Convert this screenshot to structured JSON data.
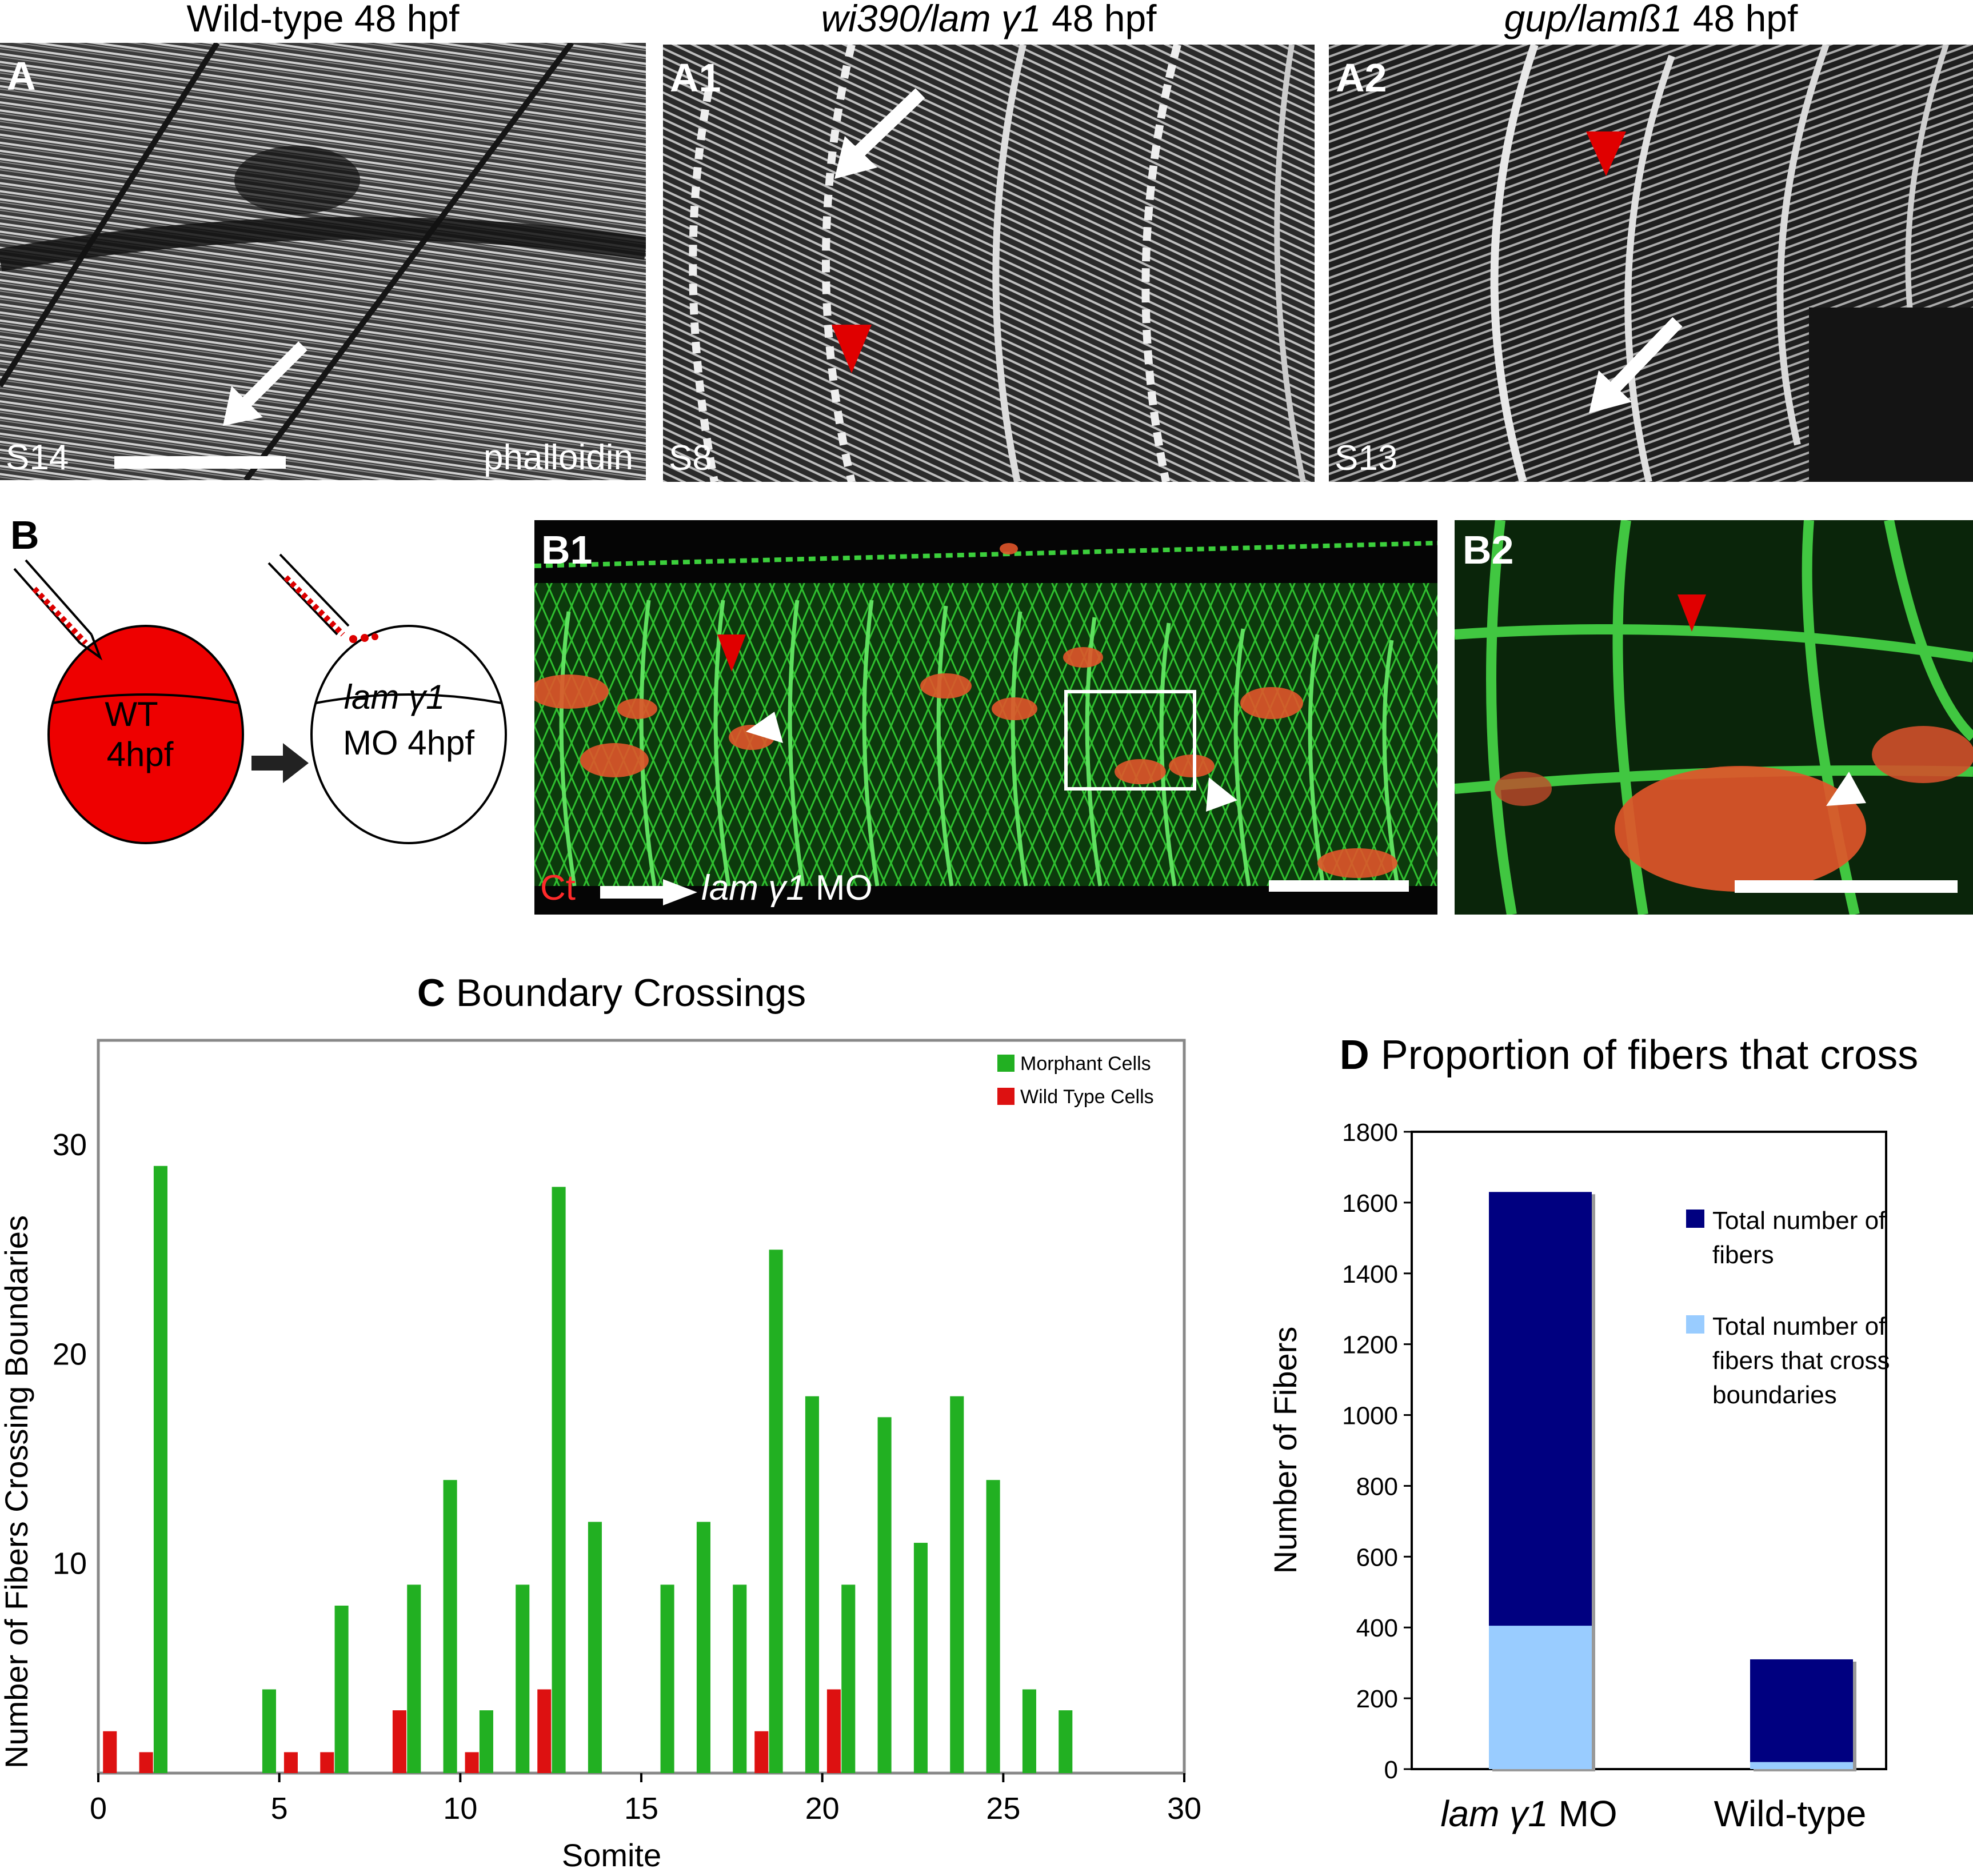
{
  "panelA": {
    "title": "Wild-type 48 hpf",
    "label": "A",
    "somite": "S14",
    "stain": "phalloidin"
  },
  "panelA1": {
    "title_italic": "wi390/lam γ1",
    "title_rest": " 48 hpf",
    "label": "A1",
    "somite": "S8"
  },
  "panelA2": {
    "title_italic": "gup/lamß1",
    "title_rest": " 48 hpf",
    "label": "A2",
    "somite": "S13"
  },
  "panelB": {
    "label": "B",
    "wt_line1": "WT",
    "wt_line2": "4hpf",
    "mo_line1": "lam γ1",
    "mo_line2": "MO 4hpf"
  },
  "panelB1": {
    "label": "B1",
    "ct": "Ct",
    "arrow_target": "lam γ1",
    "arrow_target_suffix": " MO"
  },
  "panelB2": {
    "label": "B2"
  },
  "colors": {
    "morphant": "#22b022",
    "wildtype_cells": "#dd1111",
    "total_fibers": "#000080",
    "crossing_fibers": "#99ccff",
    "red_marker": "#e00000",
    "b_embryo_fill": "#ee0000"
  },
  "chart_data": [
    {
      "type": "bar",
      "panel_letter": "C",
      "title": "Boundary Crossings",
      "xlabel": "Somite",
      "ylabel": "Number of Fibers Crossing Boundaries",
      "xlim": [
        0,
        30
      ],
      "ylim": [
        0,
        35
      ],
      "xticks": [
        0,
        5,
        10,
        15,
        20,
        25,
        30
      ],
      "yticks": [
        10,
        20,
        30
      ],
      "legend_position": "top-right",
      "series": [
        {
          "name": "Morphant Cells",
          "x": [
            1.5,
            4.5,
            6.5,
            8.5,
            9.5,
            10.5,
            11.5,
            12.5,
            13.5,
            15.5,
            16.5,
            17.5,
            18.5,
            19.5,
            20.5,
            21.5,
            22.5,
            23.5,
            24.5,
            25.5,
            26.5
          ],
          "values": [
            29,
            4,
            8,
            9,
            14,
            3,
            9,
            28,
            12,
            9,
            12,
            9,
            25,
            18,
            9,
            17,
            11,
            18,
            14,
            4,
            3
          ]
        },
        {
          "name": "Wild Type Cells",
          "x": [
            0.5,
            1.5,
            5.5,
            6.5,
            8.5,
            10.5,
            12.5,
            18.5,
            20.5
          ],
          "values": [
            2,
            1,
            1,
            1,
            3,
            1,
            4,
            2,
            4
          ]
        }
      ]
    },
    {
      "type": "bar",
      "panel_letter": "D",
      "title": "Proportion of fibers that cross",
      "xlabel": "",
      "ylabel": "Number of Fibers",
      "ylim": [
        0,
        1800
      ],
      "yticks": [
        0,
        200,
        400,
        600,
        800,
        1000,
        1200,
        1400,
        1600,
        1800
      ],
      "categories": [
        "lam γ1 MO",
        "Wild-type"
      ],
      "category_suffix": [
        " MO",
        ""
      ],
      "legend_position": "top-right",
      "series": [
        {
          "name": "Total number of fibers",
          "legend_lines": [
            "Total number of",
            "fibers"
          ],
          "values": [
            1630,
            310
          ]
        },
        {
          "name": "Total number of fibers that cross boundaries",
          "legend_lines": [
            "Total number of",
            "fibers that cross",
            "boundaries"
          ],
          "values": [
            405,
            20
          ]
        }
      ]
    }
  ]
}
